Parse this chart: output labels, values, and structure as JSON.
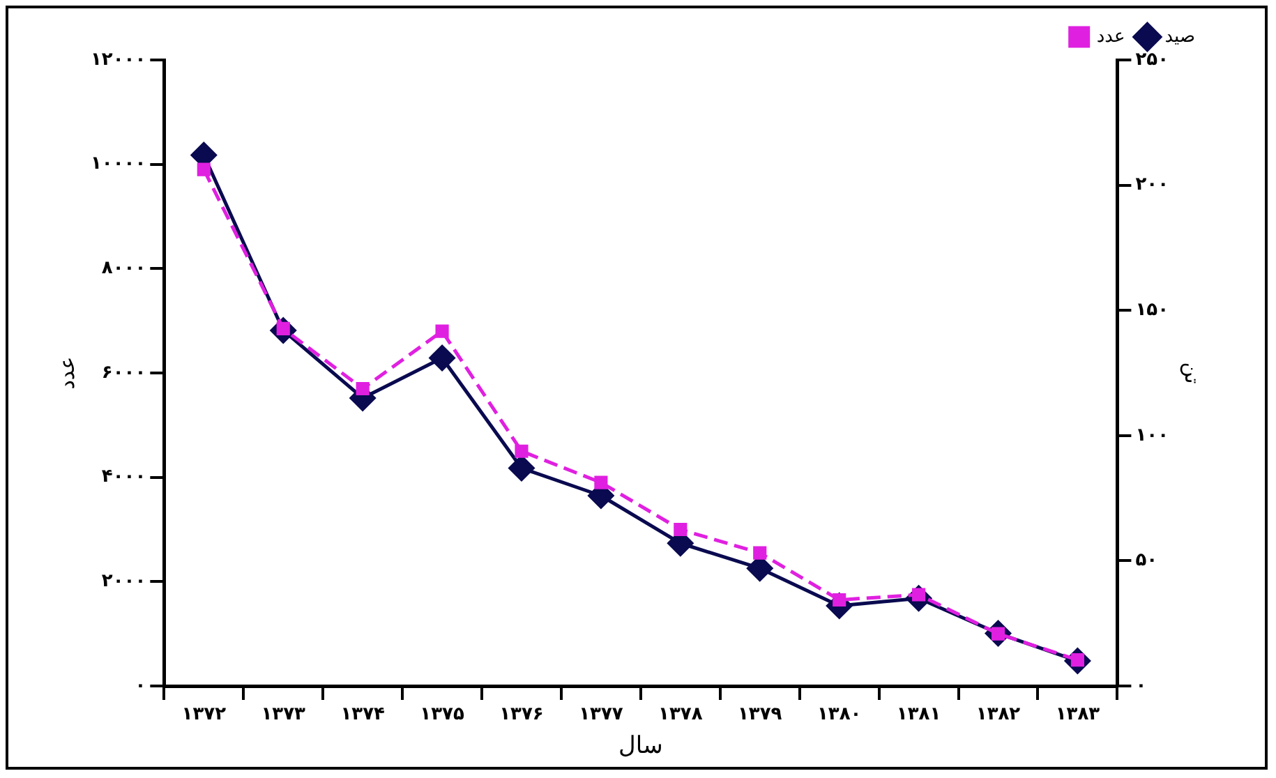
{
  "chart_data": {
    "type": "line",
    "xlabel": "سال",
    "ylabel": "عدد",
    "y2label": "تن",
    "categories": [
      "۱۳۷۲",
      "۱۳۷۳",
      "۱۳۷۴",
      "۱۳۷۵",
      "۱۳۷۶",
      "۱۳۷۷",
      "۱۳۷۸",
      "۱۳۷۹",
      "۱۳۸۰",
      "۱۳۸۱",
      "۱۳۸۲",
      "۱۳۸۳"
    ],
    "series": [
      {
        "name": "عدد",
        "color": "#e020e0",
        "marker": "square",
        "line_style": "dashed",
        "values": [
          9900,
          6850,
          5700,
          6800,
          4500,
          3900,
          3000,
          2550,
          1650,
          1750,
          1000,
          500
        ]
      },
      {
        "name": "صید",
        "color": "#0a0a50",
        "marker": "diamond",
        "line_style": "solid",
        "axis": "y2",
        "values": [
          212,
          142,
          115,
          131,
          87,
          76,
          57,
          47,
          32,
          35,
          21,
          10
        ]
      }
    ],
    "ylim": [
      0,
      12000
    ],
    "yticks": [
      {
        "value": 0,
        "label": "۰"
      },
      {
        "value": 2000,
        "label": "۲۰۰۰"
      },
      {
        "value": 4000,
        "label": "۴۰۰۰"
      },
      {
        "value": 6000,
        "label": "۶۰۰۰"
      },
      {
        "value": 8000,
        "label": "۸۰۰۰"
      },
      {
        "value": 10000,
        "label": "۱۰۰۰۰"
      },
      {
        "value": 12000,
        "label": "۱۲۰۰۰"
      }
    ],
    "y2lim": [
      0,
      250
    ],
    "y2ticks": [
      {
        "value": 0,
        "label": "۰"
      },
      {
        "value": 50,
        "label": "۵۰"
      },
      {
        "value": 100,
        "label": "۱۰۰"
      },
      {
        "value": 150,
        "label": "۱۵۰"
      },
      {
        "value": 200,
        "label": "۲۰۰"
      },
      {
        "value": 250,
        "label": "۲۵۰"
      }
    ],
    "grid": false,
    "legend": "top right"
  }
}
